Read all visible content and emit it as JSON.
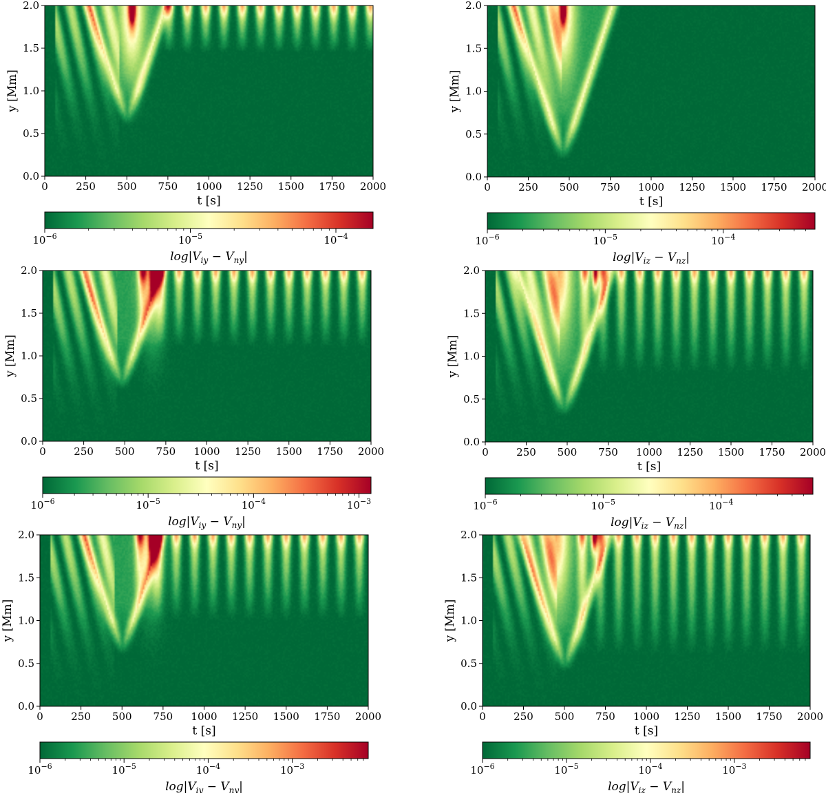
{
  "chart_data": [
    {
      "type": "heatmap",
      "panel": "top-left",
      "xlabel": "t [s]",
      "ylabel": "y [Mm]",
      "xlim": [
        0,
        2000
      ],
      "ylim": [
        0.0,
        2.0
      ],
      "xticks": [
        "0",
        "250",
        "500",
        "750",
        "1000",
        "1250",
        "1500",
        "1750",
        "2000"
      ],
      "yticks": [
        "0.0",
        "0.5",
        "1.0",
        "1.5",
        "2.0"
      ],
      "colorbar": {
        "label": "log|V_iy − V_ny|",
        "range": [
          1e-06,
          0.00018
        ],
        "scale": "log",
        "ticks": [
          "10^-6",
          "10^-5",
          "10^-4"
        ],
        "colormap": "RdYlGn_r"
      },
      "features": {
        "burst_center_t": 530,
        "vee_apex": [
          500,
          0.6
        ],
        "bright_peak_t": 530,
        "periodic_from_t": 700,
        "period": 112,
        "periodic_depth": 0.55,
        "max_level": 0.9
      }
    },
    {
      "type": "heatmap",
      "panel": "top-right",
      "xlabel": "t [s]",
      "ylabel": "y [Mm]",
      "xlim": [
        0,
        2000
      ],
      "ylim": [
        0.0,
        2.0
      ],
      "xticks": [
        "0",
        "250",
        "500",
        "750",
        "1000",
        "1250",
        "1500",
        "1750",
        "2000"
      ],
      "yticks": [
        "0.0",
        "0.5",
        "1.0",
        "1.5",
        "2.0"
      ],
      "colorbar": {
        "label": "log|V_iz − V_nz|",
        "range": [
          1e-06,
          0.0006
        ],
        "scale": "log",
        "ticks": [
          "10^-6",
          "10^-5",
          "10^-4"
        ],
        "colormap": "RdYlGn_r"
      },
      "features": {
        "burst_center_t": 460,
        "vee_apex": [
          460,
          0.2
        ],
        "bright_peak_t": 460,
        "periodic_from_t": 9999,
        "period": 112,
        "periodic_depth": 0.0,
        "max_level": 0.95
      }
    },
    {
      "type": "heatmap",
      "panel": "middle-left",
      "xlabel": "t [s]",
      "ylabel": "y [Mm]",
      "xlim": [
        0,
        2000
      ],
      "ylim": [
        0.0,
        2.0
      ],
      "xticks": [
        "0",
        "250",
        "500",
        "750",
        "1000",
        "1250",
        "1500",
        "1750",
        "2000"
      ],
      "yticks": [
        "0.0",
        "0.5",
        "1.0",
        "1.5",
        "2.0"
      ],
      "colorbar": {
        "label": "log|V_iy − V_ny|",
        "range": [
          1e-06,
          0.0013
        ],
        "scale": "log",
        "ticks": [
          "10^-6",
          "10^-5",
          "10^-4",
          "10^-3"
        ],
        "colormap": "RdYlGn_r"
      },
      "features": {
        "burst_center_t": 670,
        "vee_apex": [
          480,
          0.6
        ],
        "bright_peak_t": 670,
        "periodic_from_t": 550,
        "period": 112,
        "periodic_depth": 0.9,
        "max_level": 0.95
      }
    },
    {
      "type": "heatmap",
      "panel": "middle-right",
      "xlabel": "t [s]",
      "ylabel": "y [Mm]",
      "xlim": [
        0,
        2000
      ],
      "ylim": [
        0.0,
        2.0
      ],
      "xticks": [
        "0",
        "250",
        "500",
        "750",
        "1000",
        "1250",
        "1500",
        "1750",
        "2000"
      ],
      "yticks": [
        "0.0",
        "0.5",
        "1.0",
        "1.5",
        "2.0"
      ],
      "colorbar": {
        "label": "log|V_iz − V_nz|",
        "range": [
          1e-06,
          0.0006
        ],
        "scale": "log",
        "ticks": [
          "10^-6",
          "10^-5",
          "10^-4"
        ],
        "colormap": "RdYlGn_r"
      },
      "features": {
        "burst_center_t": 450,
        "vee_apex": [
          480,
          0.3
        ],
        "bright_peak_t": 670,
        "periodic_from_t": 550,
        "period": 112,
        "periodic_depth": 1.2,
        "max_level": 0.95
      }
    },
    {
      "type": "heatmap",
      "panel": "bottom-left",
      "xlabel": "t [s]",
      "ylabel": "y [Mm]",
      "xlim": [
        0,
        2000
      ],
      "ylim": [
        0.0,
        2.0
      ],
      "xticks": [
        "0",
        "250",
        "500",
        "750",
        "1000",
        "1250",
        "1500",
        "1750",
        "2000"
      ],
      "yticks": [
        "0.0",
        "0.5",
        "1.0",
        "1.5",
        "2.0"
      ],
      "colorbar": {
        "label": "log|V_iy − V_ny|",
        "range": [
          1e-06,
          0.008
        ],
        "scale": "log",
        "ticks": [
          "10^-6",
          "10^-5",
          "10^-4",
          "10^-3"
        ],
        "colormap": "RdYlGn_r"
      },
      "features": {
        "burst_center_t": 680,
        "vee_apex": [
          500,
          0.6
        ],
        "bright_peak_t": 680,
        "periodic_from_t": 550,
        "period": 112,
        "periodic_depth": 1.0,
        "max_level": 0.95
      }
    },
    {
      "type": "heatmap",
      "panel": "bottom-right",
      "xlabel": "t [s]",
      "ylabel": "y [Mm]",
      "xlim": [
        0,
        2000
      ],
      "ylim": [
        0.0,
        2.0
      ],
      "xticks": [
        "0",
        "250",
        "500",
        "750",
        "1000",
        "1250",
        "1500",
        "1750",
        "2000"
      ],
      "yticks": [
        "0.0",
        "0.5",
        "1.0",
        "1.5",
        "2.0"
      ],
      "colorbar": {
        "label": "log|V_iz − V_nz|",
        "range": [
          1e-06,
          0.008
        ],
        "scale": "log",
        "ticks": [
          "10^-6",
          "10^-5",
          "10^-4",
          "10^-3"
        ],
        "colormap": "RdYlGn_r"
      },
      "features": {
        "burst_center_t": 450,
        "vee_apex": [
          500,
          0.4
        ],
        "bright_peak_t": 680,
        "periodic_from_t": 550,
        "period": 112,
        "periodic_depth": 1.4,
        "max_level": 0.95
      }
    }
  ]
}
